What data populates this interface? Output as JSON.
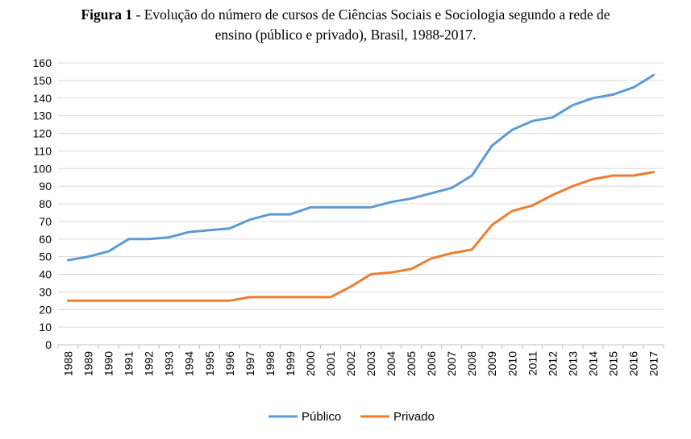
{
  "caption": {
    "label": "Figura 1",
    "line1": "Evolução do número de cursos de Ciências Sociais e Sociologia segundo a rede de",
    "line2": "ensino (público e privado), Brasil, 1988-2017."
  },
  "chart_data": {
    "type": "line",
    "title": "Figura 1 - Evolução do número de cursos de Ciências Sociais e Sociologia segundo a rede de ensino (público e privado), Brasil, 1988-2017.",
    "x": [
      "1988",
      "1989",
      "1990",
      "1991",
      "1992",
      "1993",
      "1994",
      "1995",
      "1996",
      "1997",
      "1998",
      "1999",
      "2000",
      "2001",
      "2002",
      "2003",
      "2004",
      "2005",
      "2006",
      "2007",
      "2008",
      "2009",
      "2010",
      "2011",
      "2012",
      "2013",
      "2014",
      "2015",
      "2016",
      "2017"
    ],
    "series": [
      {
        "name": "Público",
        "color": "#5b9bd5",
        "values": [
          48,
          50,
          53,
          60,
          60,
          61,
          64,
          65,
          66,
          71,
          74,
          74,
          78,
          78,
          78,
          78,
          81,
          83,
          86,
          89,
          96,
          113,
          122,
          127,
          129,
          136,
          140,
          142,
          146,
          153
        ]
      },
      {
        "name": "Privado",
        "color": "#ed7d31",
        "values": [
          25,
          25,
          25,
          25,
          25,
          25,
          25,
          25,
          25,
          27,
          27,
          27,
          27,
          27,
          33,
          40,
          41,
          43,
          49,
          52,
          54,
          68,
          76,
          79,
          85,
          90,
          94,
          96,
          96,
          98
        ]
      }
    ],
    "ylim": [
      0,
      160
    ],
    "yticks": [
      0,
      10,
      20,
      30,
      40,
      50,
      60,
      70,
      80,
      90,
      100,
      110,
      120,
      130,
      140,
      150,
      160
    ],
    "grid": true,
    "legend": "bottom"
  }
}
